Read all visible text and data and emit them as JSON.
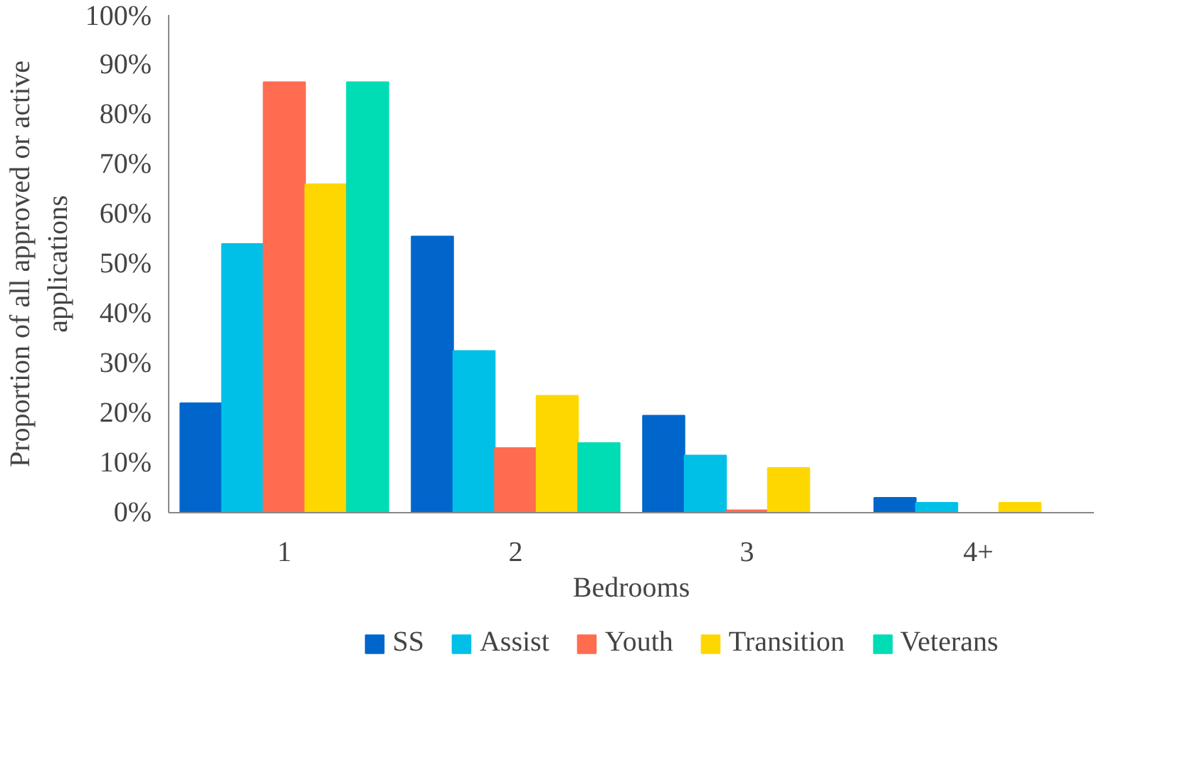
{
  "chart_data": {
    "type": "bar",
    "xlabel": "Bedrooms",
    "ylabel": "Proportion of all approved or active applications",
    "categories": [
      "1",
      "2",
      "3",
      "4+"
    ],
    "series": [
      {
        "name": "SS",
        "color": "#0066cc",
        "values": [
          22,
          55.5,
          19.5,
          3
        ]
      },
      {
        "name": "Assist",
        "color": "#00c0e8",
        "values": [
          54,
          32.5,
          11.5,
          2
        ]
      },
      {
        "name": "Youth",
        "color": "#ff6c50",
        "values": [
          86.5,
          13,
          0.5,
          0
        ]
      },
      {
        "name": "Transition",
        "color": "#ffd700",
        "values": [
          66,
          23.5,
          9,
          2
        ]
      },
      {
        "name": "Veterans",
        "color": "#00dcb4",
        "values": [
          86.5,
          14,
          0,
          0
        ]
      }
    ],
    "ylim": [
      0,
      100
    ],
    "yticks": [
      {
        "value": 0,
        "label": "0%"
      },
      {
        "value": 10,
        "label": "10%"
      },
      {
        "value": 20,
        "label": "20%"
      },
      {
        "value": 30,
        "label": "30%"
      },
      {
        "value": 40,
        "label": "40%"
      },
      {
        "value": 50,
        "label": "50%"
      },
      {
        "value": 60,
        "label": "60%"
      },
      {
        "value": 70,
        "label": "70%"
      },
      {
        "value": 80,
        "label": "80%"
      },
      {
        "value": 90,
        "label": "90%"
      },
      {
        "value": 100,
        "label": "100%"
      }
    ],
    "grid": false,
    "legend": "bottom"
  }
}
